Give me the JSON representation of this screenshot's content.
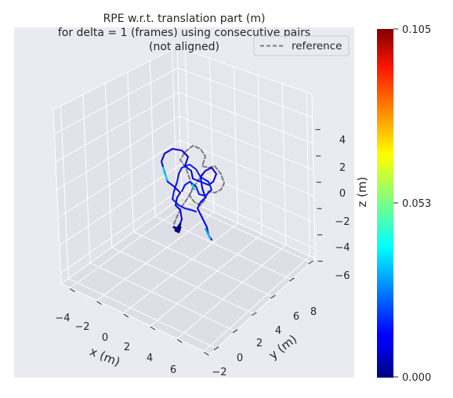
{
  "chart_data": {
    "type": "line",
    "projection": "3d",
    "title": [
      "RPE w.r.t. translation part (m)",
      "for delta = 1 (frames) using consecutive pairs",
      "(not aligned)"
    ],
    "xlabel": "x (m)",
    "ylabel": "y (m)",
    "zlabel": "z (m)",
    "x_ticks": [
      "−4",
      "−2",
      "0",
      "2",
      "4",
      "6"
    ],
    "y_ticks": [
      "−2",
      "0",
      "2",
      "4",
      "6",
      "8"
    ],
    "z_ticks": [
      "4",
      "2",
      "0",
      "−2",
      "−4",
      "−6"
    ],
    "legend": {
      "entries": [
        "reference"
      ],
      "placement": "upper-right"
    },
    "colorbar": {
      "colormap": "jet",
      "min": 0.0,
      "max": 0.105,
      "ticks": [
        "0.105",
        "0.053",
        "0.000"
      ]
    },
    "series": [
      {
        "name": "reference",
        "style": "dashed",
        "color": "#808080"
      },
      {
        "style": "solid",
        "color_by": "rpe_error"
      }
    ],
    "grid": true
  }
}
